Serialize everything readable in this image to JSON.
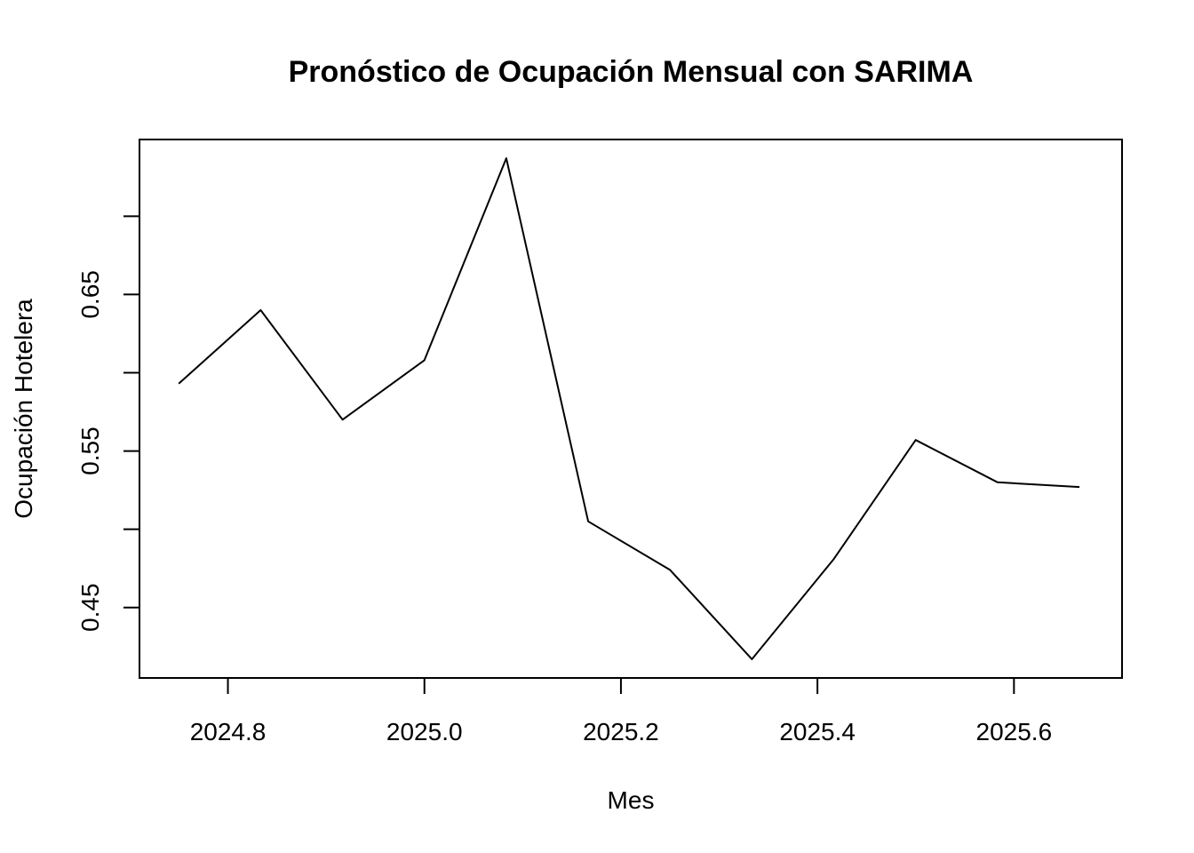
{
  "chart_data": {
    "type": "line",
    "title": "Pronóstico de Ocupación Mensual con SARIMA",
    "xlabel": "Mes",
    "ylabel": "Ocupación Hotelera",
    "xlim": [
      2024.71,
      2025.71
    ],
    "ylim": [
      0.405,
      0.749
    ],
    "x_ticks": [
      2024.8,
      2025.0,
      2025.2,
      2025.4,
      2025.6
    ],
    "x_tick_labels": [
      "2024.8",
      "2025.0",
      "2025.2",
      "2025.4",
      "2025.6"
    ],
    "y_ticks": [
      0.45,
      0.5,
      0.55,
      0.6,
      0.65,
      0.7
    ],
    "y_tick_labels": [
      "0.45",
      "",
      "0.55",
      "",
      "0.65",
      ""
    ],
    "grid": false,
    "line_color": "#000000",
    "series": [
      {
        "x": [
          2024.75,
          2024.8333,
          2024.9167,
          2025.0,
          2025.0833,
          2025.1667,
          2025.25,
          2025.3333,
          2025.4167,
          2025.5,
          2025.5833,
          2025.6667
        ],
        "values": [
          0.593,
          0.64,
          0.57,
          0.608,
          0.737,
          0.505,
          0.474,
          0.417,
          0.481,
          0.557,
          0.53,
          0.527
        ]
      }
    ]
  }
}
